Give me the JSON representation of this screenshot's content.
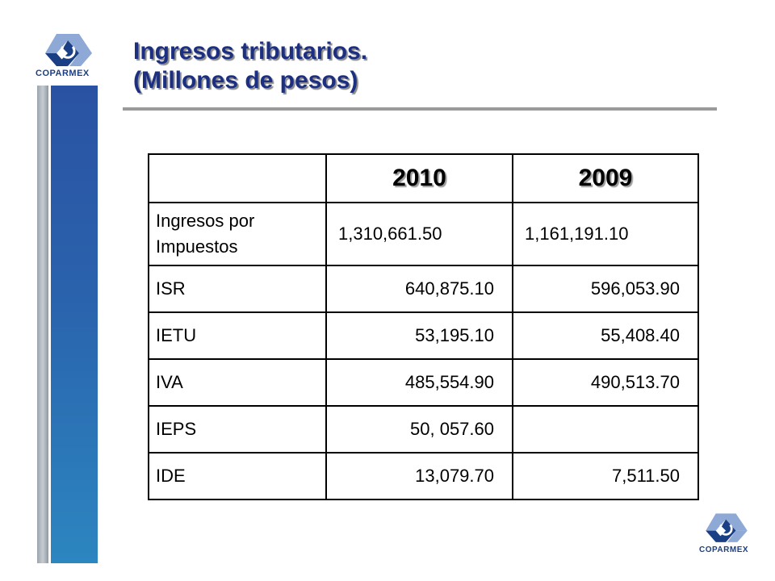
{
  "logo": {
    "name": "COPARMEX",
    "colors": {
      "primary": "#1b3f84",
      "secondary": "#8fa9d6"
    }
  },
  "title": {
    "line1": "Ingresos tributarios.",
    "line2": "(Millones de pesos)"
  },
  "table": {
    "headers": [
      "",
      "2010",
      "2009"
    ],
    "rows": [
      {
        "label": "Ingresos por Impuestos",
        "v2010": "1,310,661.50",
        "v2009": "1,161,191.10"
      },
      {
        "label": "ISR",
        "v2010": "640,875.10",
        "v2009": "596,053.90"
      },
      {
        "label": "IETU",
        "v2010": "53,195.10",
        "v2009": "55,408.40"
      },
      {
        "label": "IVA",
        "v2010": "485,554.90",
        "v2009": "490,513.70"
      },
      {
        "label": "IEPS",
        "v2010": "50, 057.60",
        "v2009": ""
      },
      {
        "label": "IDE",
        "v2010": "13,079.70",
        "v2009": "7,511.50"
      }
    ]
  }
}
